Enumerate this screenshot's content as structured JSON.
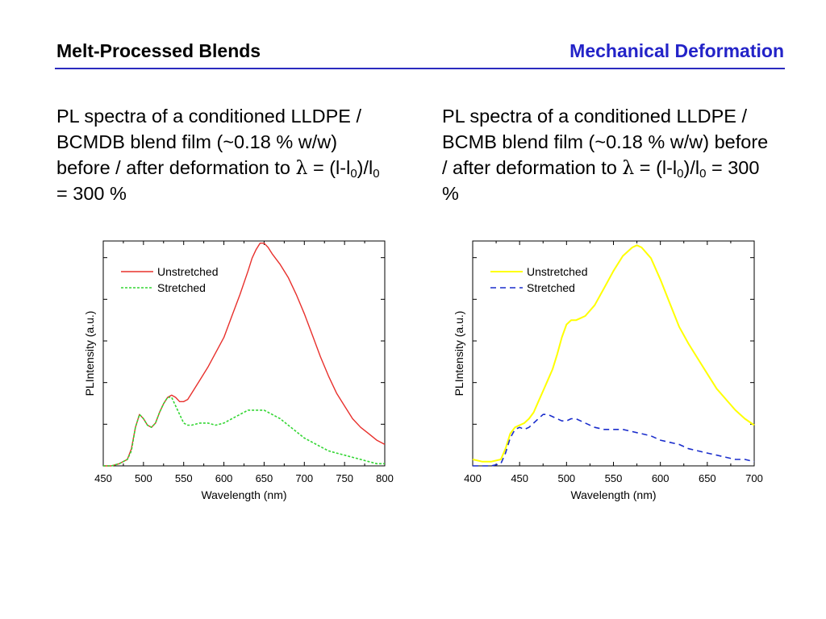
{
  "header": {
    "left_title": "Melt-Processed Blends",
    "right_title": "Mechanical Deformation",
    "accent_color": "#2323c8"
  },
  "captions": [
    {
      "pre": "PL spectra of a conditioned LLDPE / BCMDB blend film (~0.18 % w/w) before / after deformation to ",
      "lambda": "λ",
      "eq": " = (l-l",
      "sub1": "0",
      "mid": ")/l",
      "sub2": "0",
      "post": " = 300 %"
    },
    {
      "pre": "PL spectra of a conditioned LLDPE / BCMB blend film (~0.18 % w/w) before / after deformation to ",
      "lambda": "λ",
      "eq": " = (l-l",
      "sub1": "0",
      "mid": ")/l",
      "sub2": "0",
      "post": " = 300 %"
    }
  ],
  "chart_data": [
    {
      "type": "line",
      "xlabel": "Wavelength (nm)",
      "ylabel": "PLIntensity (a.u.)",
      "xlim": [
        450,
        800
      ],
      "ylim": [
        0,
        1.05
      ],
      "xticks": [
        450,
        500,
        550,
        600,
        650,
        700,
        750,
        800
      ],
      "legend_position": "top-left",
      "series": [
        {
          "name": "Unstretched",
          "color": "#e8302c",
          "style": "solid",
          "x": [
            450,
            460,
            470,
            480,
            485,
            490,
            495,
            500,
            505,
            510,
            515,
            520,
            525,
            530,
            535,
            540,
            545,
            550,
            555,
            560,
            570,
            580,
            590,
            600,
            610,
            620,
            630,
            635,
            640,
            645,
            650,
            655,
            660,
            670,
            680,
            690,
            700,
            710,
            720,
            730,
            740,
            750,
            760,
            770,
            780,
            790,
            800
          ],
          "y": [
            0.0,
            0.0,
            0.01,
            0.03,
            0.08,
            0.18,
            0.24,
            0.22,
            0.19,
            0.18,
            0.2,
            0.25,
            0.29,
            0.32,
            0.33,
            0.32,
            0.3,
            0.3,
            0.31,
            0.34,
            0.4,
            0.46,
            0.53,
            0.6,
            0.7,
            0.8,
            0.91,
            0.97,
            1.01,
            1.04,
            1.04,
            1.02,
            0.99,
            0.94,
            0.88,
            0.8,
            0.71,
            0.61,
            0.51,
            0.42,
            0.34,
            0.28,
            0.22,
            0.18,
            0.15,
            0.12,
            0.1
          ]
        },
        {
          "name": "Stretched",
          "color": "#33d633",
          "style": "dashed",
          "x": [
            450,
            460,
            470,
            480,
            485,
            490,
            495,
            500,
            505,
            510,
            515,
            520,
            525,
            530,
            535,
            540,
            545,
            550,
            555,
            560,
            570,
            580,
            590,
            600,
            610,
            620,
            630,
            640,
            650,
            660,
            670,
            680,
            690,
            700,
            710,
            720,
            730,
            740,
            750,
            760,
            770,
            780,
            790,
            800
          ],
          "y": [
            0.0,
            0.0,
            0.01,
            0.03,
            0.07,
            0.18,
            0.24,
            0.22,
            0.19,
            0.18,
            0.2,
            0.25,
            0.29,
            0.32,
            0.32,
            0.28,
            0.24,
            0.2,
            0.19,
            0.19,
            0.2,
            0.2,
            0.19,
            0.2,
            0.22,
            0.24,
            0.26,
            0.26,
            0.26,
            0.24,
            0.22,
            0.19,
            0.16,
            0.13,
            0.11,
            0.09,
            0.07,
            0.06,
            0.05,
            0.04,
            0.03,
            0.02,
            0.01,
            0.01
          ]
        }
      ]
    },
    {
      "type": "line",
      "xlabel": "Wavelength (nm)",
      "ylabel": "PLIntensity (a.u.)",
      "xlim": [
        400,
        700
      ],
      "ylim": [
        0,
        1.05
      ],
      "xticks": [
        400,
        450,
        500,
        550,
        600,
        650,
        700
      ],
      "legend_position": "top-left",
      "series": [
        {
          "name": "Unstretched",
          "color": "#ffff00",
          "style": "solid",
          "x": [
            400,
            410,
            420,
            430,
            435,
            440,
            445,
            450,
            455,
            460,
            465,
            470,
            475,
            480,
            485,
            490,
            495,
            500,
            505,
            510,
            515,
            520,
            530,
            540,
            550,
            560,
            570,
            575,
            580,
            590,
            600,
            610,
            620,
            630,
            640,
            650,
            660,
            670,
            680,
            690,
            700
          ],
          "y": [
            0.03,
            0.02,
            0.02,
            0.03,
            0.08,
            0.15,
            0.18,
            0.19,
            0.2,
            0.22,
            0.25,
            0.3,
            0.35,
            0.4,
            0.45,
            0.52,
            0.6,
            0.66,
            0.68,
            0.68,
            0.69,
            0.7,
            0.75,
            0.83,
            0.91,
            0.98,
            1.02,
            1.03,
            1.02,
            0.97,
            0.87,
            0.76,
            0.65,
            0.57,
            0.5,
            0.43,
            0.36,
            0.31,
            0.26,
            0.22,
            0.19
          ]
        },
        {
          "name": "Stretched",
          "color": "#1a2dcc",
          "style": "dashed",
          "x": [
            400,
            410,
            420,
            430,
            435,
            440,
            445,
            450,
            455,
            460,
            465,
            470,
            475,
            480,
            485,
            490,
            495,
            500,
            505,
            510,
            520,
            530,
            540,
            550,
            560,
            570,
            580,
            590,
            600,
            610,
            620,
            630,
            640,
            650,
            660,
            670,
            680,
            690,
            700
          ],
          "y": [
            0.0,
            0.0,
            0.0,
            0.01,
            0.06,
            0.13,
            0.17,
            0.18,
            0.17,
            0.18,
            0.2,
            0.22,
            0.24,
            0.24,
            0.23,
            0.22,
            0.21,
            0.21,
            0.22,
            0.22,
            0.2,
            0.18,
            0.17,
            0.17,
            0.17,
            0.16,
            0.15,
            0.14,
            0.12,
            0.11,
            0.1,
            0.08,
            0.07,
            0.06,
            0.05,
            0.04,
            0.03,
            0.03,
            0.02
          ]
        }
      ]
    }
  ]
}
